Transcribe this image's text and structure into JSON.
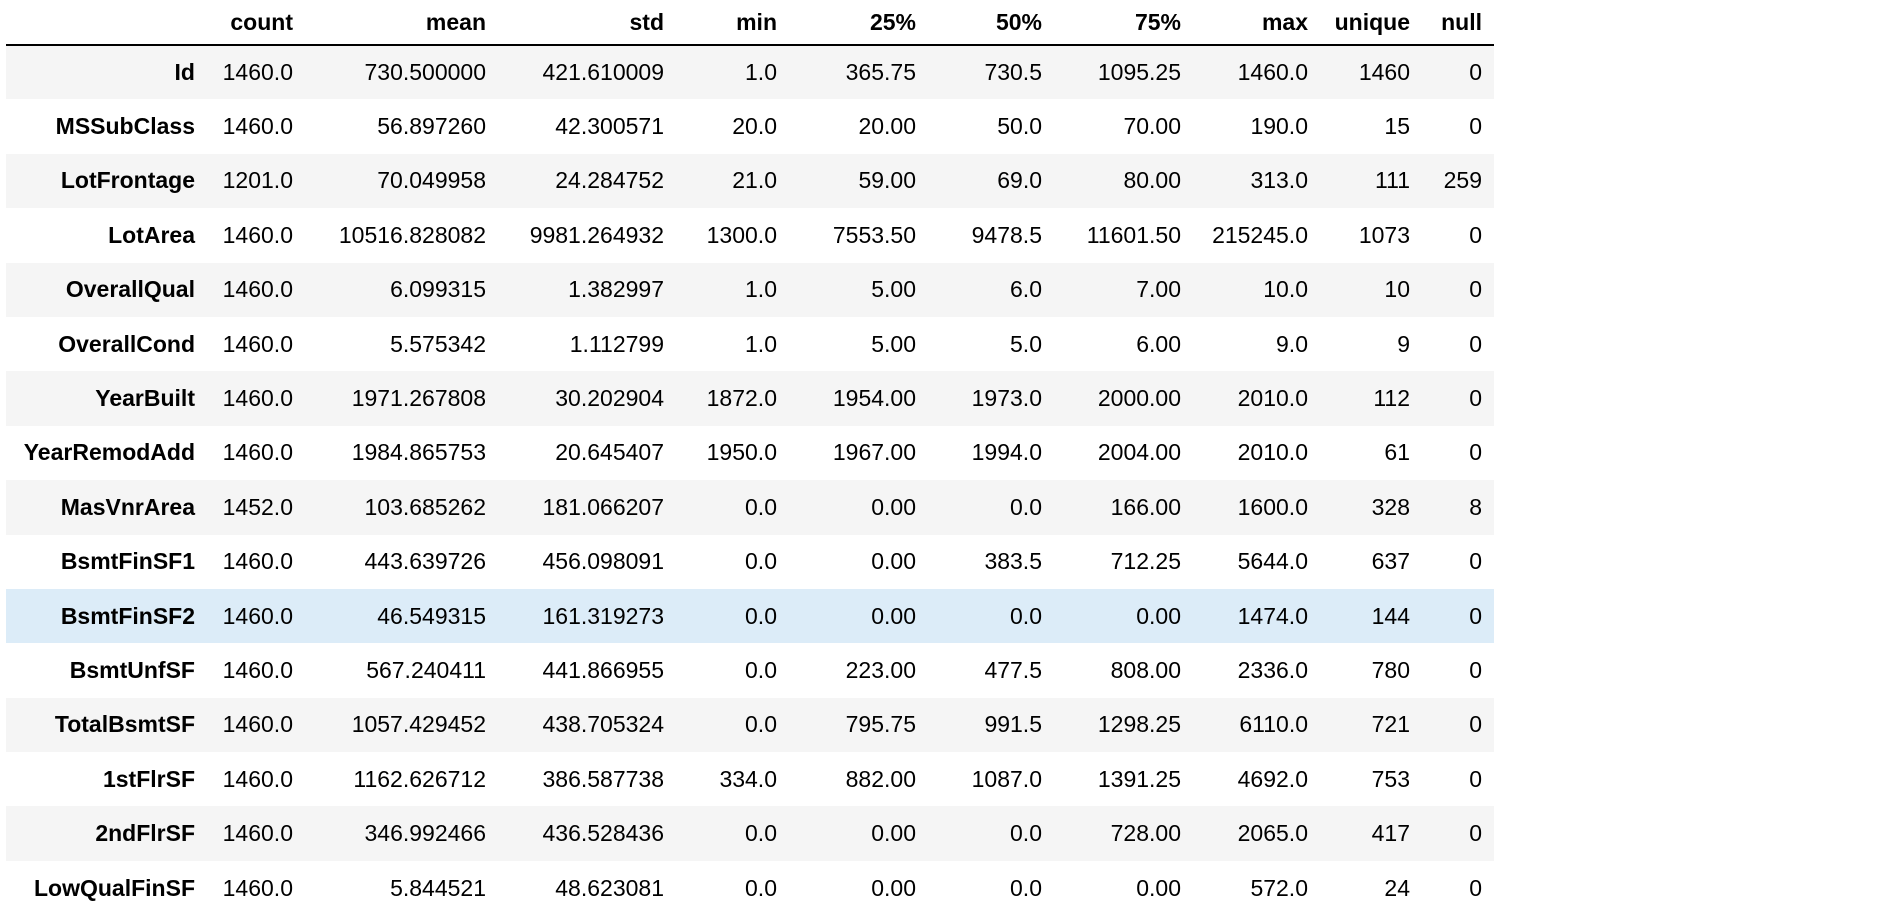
{
  "table": {
    "index_header": "",
    "columns": [
      "count",
      "mean",
      "std",
      "min",
      "25%",
      "50%",
      "75%",
      "max",
      "unique",
      "null"
    ],
    "rows": [
      {
        "label": "Id",
        "cells": [
          "1460.0",
          "730.500000",
          "421.610009",
          "1.0",
          "365.75",
          "730.5",
          "1095.25",
          "1460.0",
          "1460",
          "0"
        ]
      },
      {
        "label": "MSSubClass",
        "cells": [
          "1460.0",
          "56.897260",
          "42.300571",
          "20.0",
          "20.00",
          "50.0",
          "70.00",
          "190.0",
          "15",
          "0"
        ]
      },
      {
        "label": "LotFrontage",
        "cells": [
          "1201.0",
          "70.049958",
          "24.284752",
          "21.0",
          "59.00",
          "69.0",
          "80.00",
          "313.0",
          "111",
          "259"
        ]
      },
      {
        "label": "LotArea",
        "cells": [
          "1460.0",
          "10516.828082",
          "9981.264932",
          "1300.0",
          "7553.50",
          "9478.5",
          "11601.50",
          "215245.0",
          "1073",
          "0"
        ]
      },
      {
        "label": "OverallQual",
        "cells": [
          "1460.0",
          "6.099315",
          "1.382997",
          "1.0",
          "5.00",
          "6.0",
          "7.00",
          "10.0",
          "10",
          "0"
        ]
      },
      {
        "label": "OverallCond",
        "cells": [
          "1460.0",
          "5.575342",
          "1.112799",
          "1.0",
          "5.00",
          "5.0",
          "6.00",
          "9.0",
          "9",
          "0"
        ]
      },
      {
        "label": "YearBuilt",
        "cells": [
          "1460.0",
          "1971.267808",
          "30.202904",
          "1872.0",
          "1954.00",
          "1973.0",
          "2000.00",
          "2010.0",
          "112",
          "0"
        ]
      },
      {
        "label": "YearRemodAdd",
        "cells": [
          "1460.0",
          "1984.865753",
          "20.645407",
          "1950.0",
          "1967.00",
          "1994.0",
          "2004.00",
          "2010.0",
          "61",
          "0"
        ]
      },
      {
        "label": "MasVnrArea",
        "cells": [
          "1452.0",
          "103.685262",
          "181.066207",
          "0.0",
          "0.00",
          "0.0",
          "166.00",
          "1600.0",
          "328",
          "8"
        ]
      },
      {
        "label": "BsmtFinSF1",
        "cells": [
          "1460.0",
          "443.639726",
          "456.098091",
          "0.0",
          "0.00",
          "383.5",
          "712.25",
          "5644.0",
          "637",
          "0"
        ]
      },
      {
        "label": "BsmtFinSF2",
        "cells": [
          "1460.0",
          "46.549315",
          "161.319273",
          "0.0",
          "0.00",
          "0.0",
          "0.00",
          "1474.0",
          "144",
          "0"
        ],
        "hovered": true
      },
      {
        "label": "BsmtUnfSF",
        "cells": [
          "1460.0",
          "567.240411",
          "441.866955",
          "0.0",
          "223.00",
          "477.5",
          "808.00",
          "2336.0",
          "780",
          "0"
        ]
      },
      {
        "label": "TotalBsmtSF",
        "cells": [
          "1460.0",
          "1057.429452",
          "438.705324",
          "0.0",
          "795.75",
          "991.5",
          "1298.25",
          "6110.0",
          "721",
          "0"
        ]
      },
      {
        "label": "1stFlrSF",
        "cells": [
          "1460.0",
          "1162.626712",
          "386.587738",
          "334.0",
          "882.00",
          "1087.0",
          "1391.25",
          "4692.0",
          "753",
          "0"
        ]
      },
      {
        "label": "2ndFlrSF",
        "cells": [
          "1460.0",
          "346.992466",
          "436.528436",
          "0.0",
          "0.00",
          "0.0",
          "728.00",
          "2065.0",
          "417",
          "0"
        ]
      },
      {
        "label": "LowQualFinSF",
        "cells": [
          "1460.0",
          "5.844521",
          "48.623081",
          "0.0",
          "0.00",
          "0.0",
          "0.00",
          "572.0",
          "24",
          "0"
        ]
      }
    ]
  },
  "colors": {
    "row_odd": "#f5f5f5",
    "row_even": "#ffffff",
    "row_hover": "#dcecf8",
    "header_rule": "#000000"
  }
}
